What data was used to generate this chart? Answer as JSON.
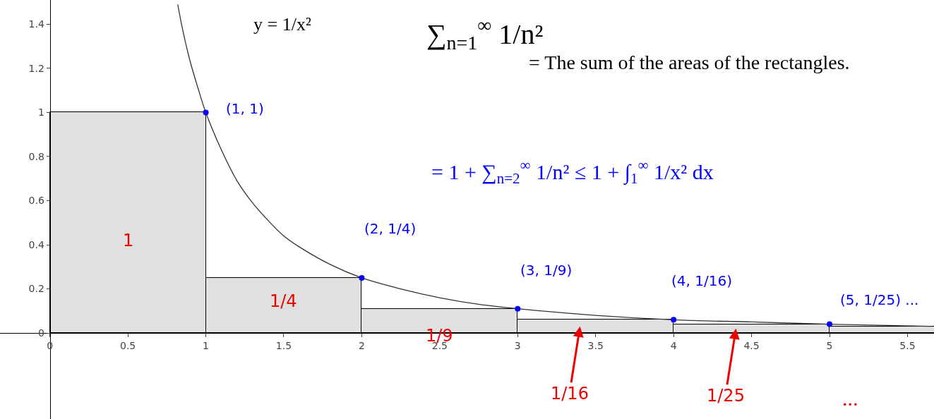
{
  "chart_data": {
    "type": "bar",
    "xlim": [
      -0.32,
      5.67
    ],
    "ylim": [
      -0.39,
      1.51
    ],
    "xticks": [
      0,
      0.5,
      1,
      1.5,
      2,
      2.5,
      3,
      3.5,
      4,
      4.5,
      5,
      5.5
    ],
    "yticks": [
      0,
      0.2,
      0.4,
      0.6,
      0.8,
      1,
      1.2,
      1.4
    ],
    "legend": false,
    "series": [
      {
        "color": "#e0e0e0",
        "x": [
          0.5,
          1.5,
          2.5,
          3.5,
          4.5,
          5.5
        ],
        "values": [
          1,
          0.25,
          0.11,
          0.06,
          0.04,
          0.028
        ]
      },
      {
        "type": "line",
        "color": "#333333",
        "marker": "none",
        "x": [
          0.82,
          0.85,
          0.9,
          0.95,
          1,
          1.1,
          1.2,
          1.3,
          1.4,
          1.5,
          1.6,
          1.8,
          2,
          2.25,
          2.5,
          2.75,
          3,
          3.5,
          4,
          4.5,
          5,
          5.65
        ],
        "values": [
          1.49,
          1.38,
          1.23,
          1.11,
          1,
          0.83,
          0.69,
          0.59,
          0.51,
          0.44,
          0.39,
          0.31,
          0.25,
          0.2,
          0.16,
          0.13,
          0.11,
          0.08,
          0.06,
          0.05,
          0.04,
          0.03
        ]
      },
      {
        "type": "scatter",
        "color": "#0000ff",
        "marker": "circle",
        "x": [
          1,
          2,
          3,
          4,
          5
        ],
        "values": [
          1,
          0.25,
          0.11,
          0.06,
          0.04
        ]
      }
    ],
    "annotations": [
      "y = 1/x²",
      "∑$_{n=1}$$^{∞}$ 1/n²",
      "= The sum of the areas of the rectangles.",
      "= 1 + ∑$_{n=2}$$^{∞}$ 1/n² ≤ 1 + ∫$_{1}$$^{∞}$ 1/x² dx",
      {
        "text": "(1, 1)",
        "x": 1,
        "y": 1
      },
      {
        "text": "(2, 1/4)",
        "x": 2,
        "y": 0.25
      },
      {
        "text": "(3, 1/9)",
        "x": 3,
        "y": 0.11
      },
      {
        "text": "(4, 1/16)",
        "x": 4,
        "y": 0.06
      },
      {
        "text": "(5, 1/25) ...",
        "x": 5,
        "y": 0.04
      },
      "1",
      "1/4",
      "1/9",
      "1/16",
      "1/25",
      "..."
    ]
  }
}
